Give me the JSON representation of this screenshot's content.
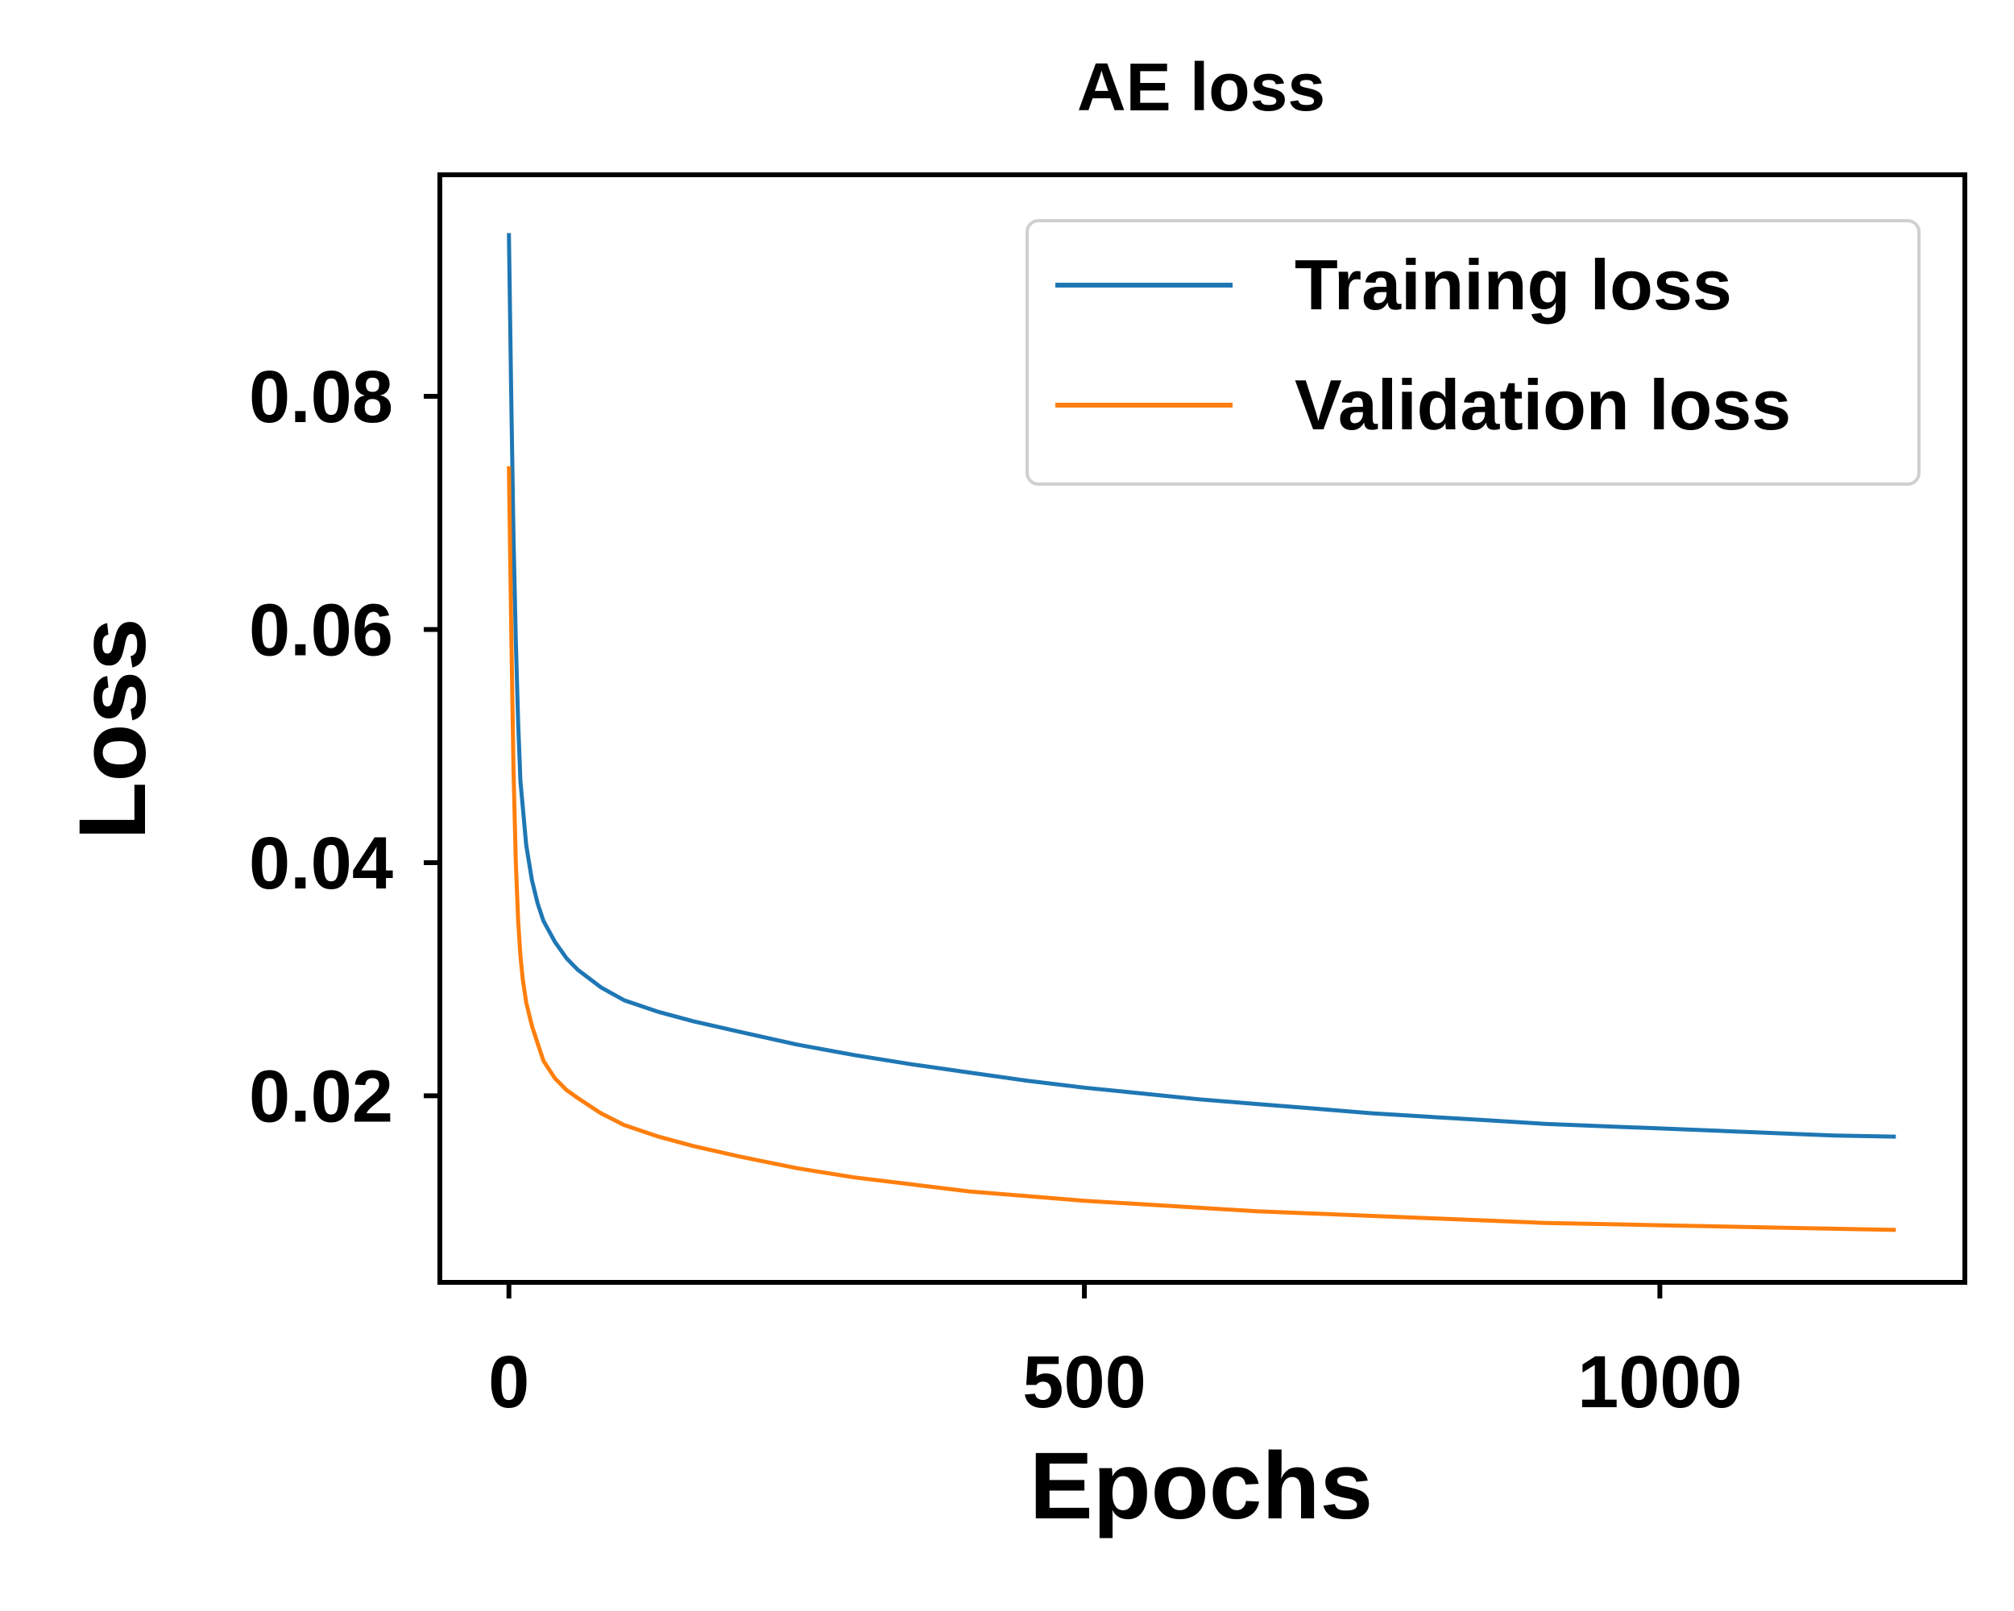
{
  "chart_data": {
    "type": "line",
    "title": "AE loss",
    "xlabel": "Epochs",
    "ylabel": "Loss",
    "xlim": [
      -60,
      1265
    ],
    "ylim": [
      0.004,
      0.099
    ],
    "xticks": [
      0,
      500,
      1000
    ],
    "yticks": [
      0.02,
      0.04,
      0.06,
      0.08
    ],
    "xtick_labels": [
      "0",
      "500",
      "1000"
    ],
    "ytick_labels": [
      "0.02",
      "0.04",
      "0.06",
      "0.08"
    ],
    "grid": false,
    "legend_position": "top-right",
    "series": [
      {
        "name": "Training loss",
        "color": "#1f77b4",
        "x": [
          0,
          2,
          4,
          6,
          8,
          10,
          15,
          20,
          25,
          30,
          40,
          50,
          60,
          80,
          100,
          130,
          160,
          200,
          250,
          300,
          350,
          400,
          450,
          500,
          550,
          600,
          650,
          700,
          750,
          800,
          850,
          900,
          950,
          1000,
          1050,
          1100,
          1150,
          1205
        ],
        "values": [
          0.094,
          0.08,
          0.068,
          0.059,
          0.052,
          0.047,
          0.0415,
          0.0385,
          0.0365,
          0.035,
          0.0332,
          0.0318,
          0.0308,
          0.0293,
          0.0282,
          0.0272,
          0.0264,
          0.0255,
          0.0244,
          0.0235,
          0.0227,
          0.022,
          0.0213,
          0.0207,
          0.0202,
          0.0197,
          0.0193,
          0.0189,
          0.0185,
          0.0182,
          0.0179,
          0.0176,
          0.0174,
          0.0172,
          0.017,
          0.0168,
          0.0166,
          0.0165
        ]
      },
      {
        "name": "Validation loss",
        "color": "#ff7f0e",
        "x": [
          0,
          2,
          4,
          6,
          8,
          10,
          12,
          15,
          20,
          25,
          30,
          40,
          50,
          60,
          80,
          100,
          130,
          160,
          200,
          250,
          300,
          350,
          400,
          450,
          500,
          550,
          600,
          650,
          700,
          750,
          800,
          850,
          900,
          950,
          1000,
          1050,
          1100,
          1150,
          1205
        ],
        "values": [
          0.074,
          0.06,
          0.048,
          0.04,
          0.035,
          0.032,
          0.03,
          0.028,
          0.026,
          0.0245,
          0.023,
          0.0215,
          0.0205,
          0.0198,
          0.0185,
          0.0175,
          0.0165,
          0.0157,
          0.0148,
          0.0138,
          0.013,
          0.0124,
          0.0118,
          0.0114,
          0.011,
          0.0107,
          0.0104,
          0.0101,
          0.0099,
          0.0097,
          0.0095,
          0.0093,
          0.0091,
          0.009,
          0.0089,
          0.0088,
          0.0087,
          0.0086,
          0.0085
        ]
      }
    ]
  }
}
